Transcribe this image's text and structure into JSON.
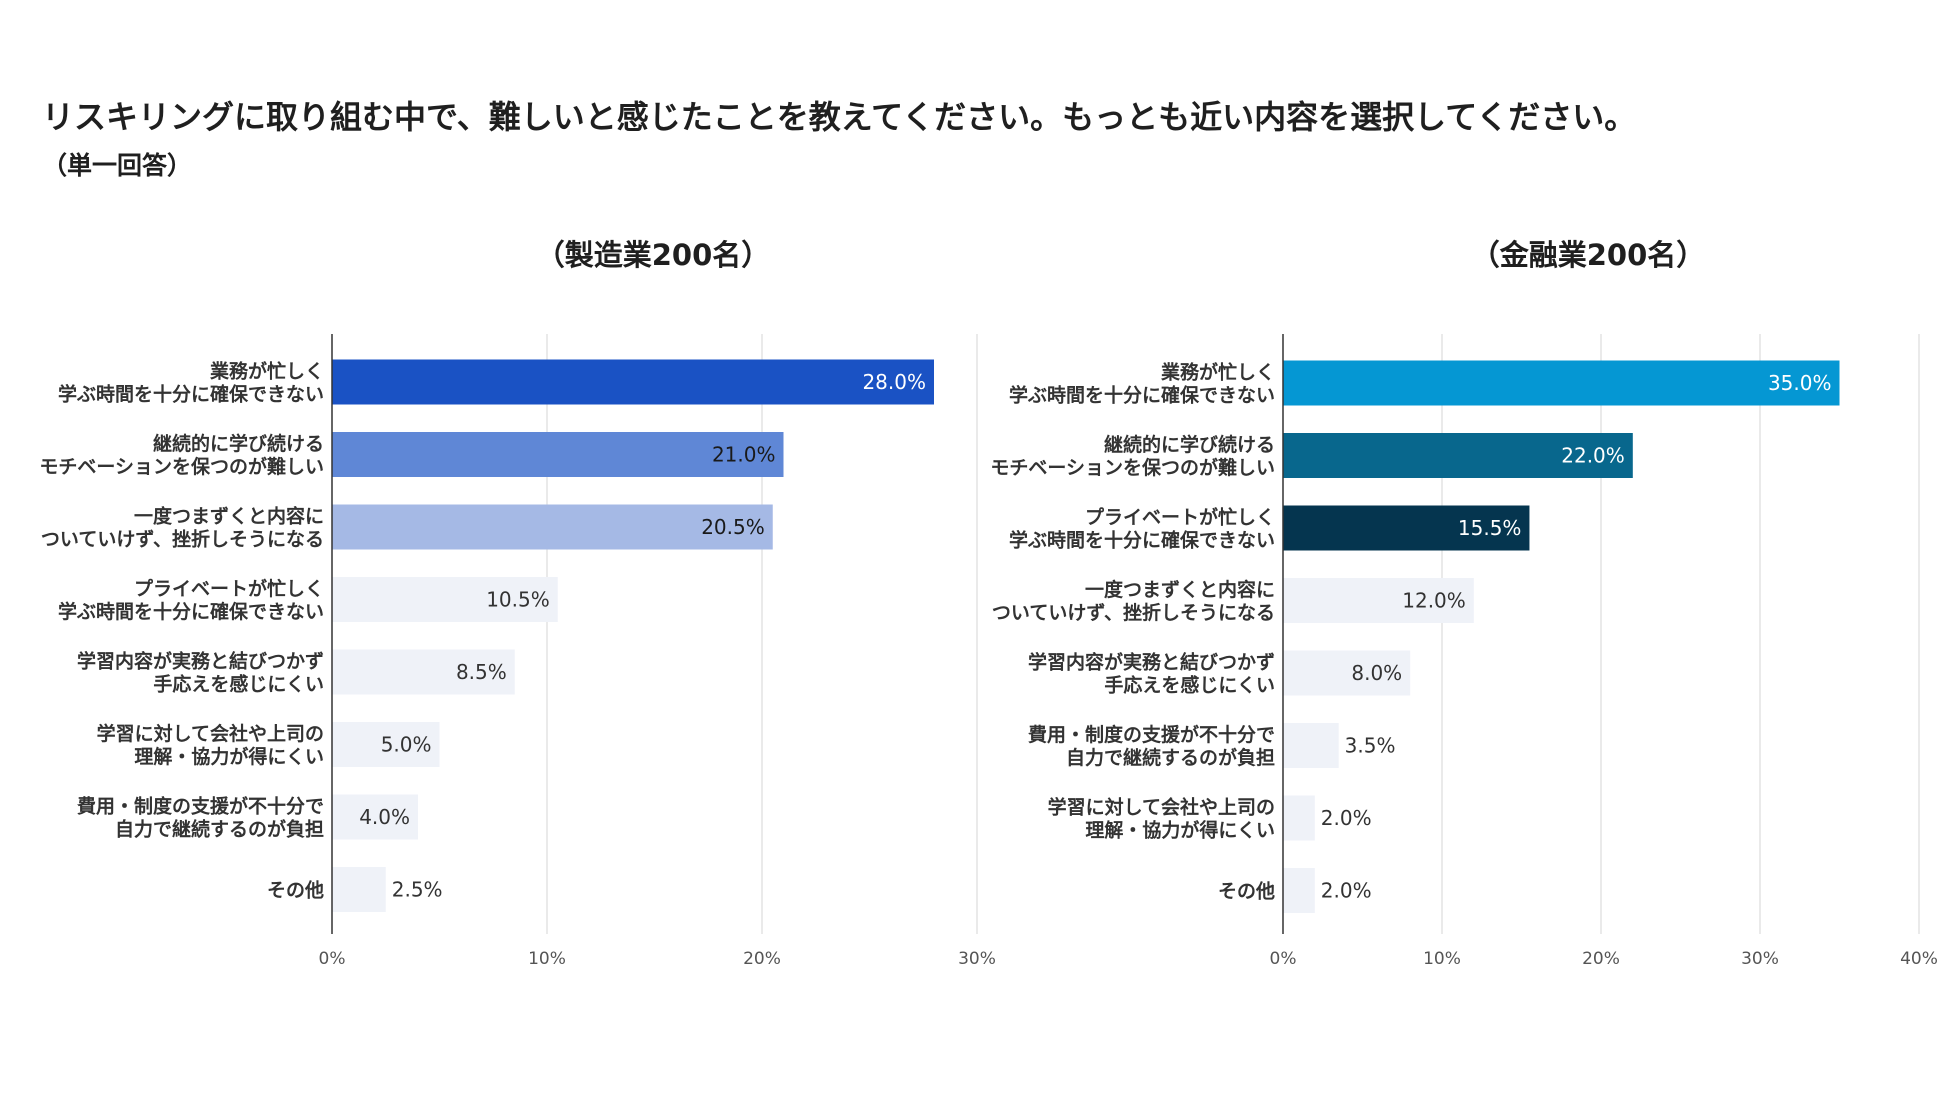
{
  "title": "リスキリングに取り組む中で、難しいと感じたことを教えてください。もっとも近い内容を選択してください。",
  "subtitle": "（単一回答）",
  "chart_data": [
    {
      "type": "bar",
      "orientation": "horizontal",
      "title": "（製造業200名）",
      "categories": [
        [
          "業務が忙しく",
          "学ぶ時間を十分に確保できない"
        ],
        [
          "継続的に学び続ける",
          "モチベーションを保つのが難しい"
        ],
        [
          "一度つまずくと内容に",
          "ついていけず、挫折しそうになる"
        ],
        [
          "プライベートが忙しく",
          "学ぶ時間を十分に確保できない"
        ],
        [
          "学習内容が実務と結びつかず",
          "手応えを感じにくい"
        ],
        [
          "学習に対して会社や上司の",
          "理解・協力が得にくい"
        ],
        [
          "費用・制度の支援が不十分で",
          "自力で継続するのが負担"
        ],
        [
          "その他"
        ]
      ],
      "values": [
        28.0,
        21.0,
        20.5,
        10.5,
        8.5,
        5.0,
        4.0,
        2.5
      ],
      "value_labels": [
        "28.0%",
        "21.0%",
        "20.5%",
        "10.5%",
        "8.5%",
        "5.0%",
        "4.0%",
        "2.5%"
      ],
      "bar_colors": [
        "#1a52c4",
        "#5f87d6",
        "#a5b9e5",
        "#eff2f8",
        "#eff2f8",
        "#eff2f8",
        "#eff2f8",
        "#eff2f8"
      ],
      "label_colors": [
        "#ffffff",
        "#1a1a1a",
        "#1a1a1a",
        "#333333",
        "#333333",
        "#333333",
        "#333333",
        "#333333"
      ],
      "xlim": [
        0,
        30
      ],
      "xticks": [
        0,
        10,
        20,
        30
      ],
      "xtick_labels": [
        "0%",
        "10%",
        "20%",
        "30%"
      ],
      "grid": true
    },
    {
      "type": "bar",
      "orientation": "horizontal",
      "title": "（金融業200名）",
      "categories": [
        [
          "業務が忙しく",
          "学ぶ時間を十分に確保できない"
        ],
        [
          "継続的に学び続ける",
          "モチベーションを保つのが難しい"
        ],
        [
          "プライベートが忙しく",
          "学ぶ時間を十分に確保できない"
        ],
        [
          "一度つまずくと内容に",
          "ついていけず、挫折しそうになる"
        ],
        [
          "学習内容が実務と結びつかず",
          "手応えを感じにくい"
        ],
        [
          "費用・制度の支援が不十分で",
          "自力で継続するのが負担"
        ],
        [
          "学習に対して会社や上司の",
          "理解・協力が得にくい"
        ],
        [
          "その他"
        ]
      ],
      "values": [
        35.0,
        22.0,
        15.5,
        12.0,
        8.0,
        3.5,
        2.0,
        2.0
      ],
      "value_labels": [
        "35.0%",
        "22.0%",
        "15.5%",
        "12.0%",
        "8.0%",
        "3.5%",
        "2.0%",
        "2.0%"
      ],
      "bar_colors": [
        "#0597d3",
        "#08678d",
        "#05354f",
        "#eff2f8",
        "#eff2f8",
        "#eff2f8",
        "#eff2f8",
        "#eff2f8"
      ],
      "label_colors": [
        "#ffffff",
        "#ffffff",
        "#ffffff",
        "#333333",
        "#333333",
        "#333333",
        "#333333",
        "#333333"
      ],
      "xlim": [
        0,
        40
      ],
      "xticks": [
        0,
        10,
        20,
        30,
        40
      ],
      "xtick_labels": [
        "0%",
        "10%",
        "20%",
        "30%",
        "40%"
      ],
      "grid": true
    }
  ]
}
